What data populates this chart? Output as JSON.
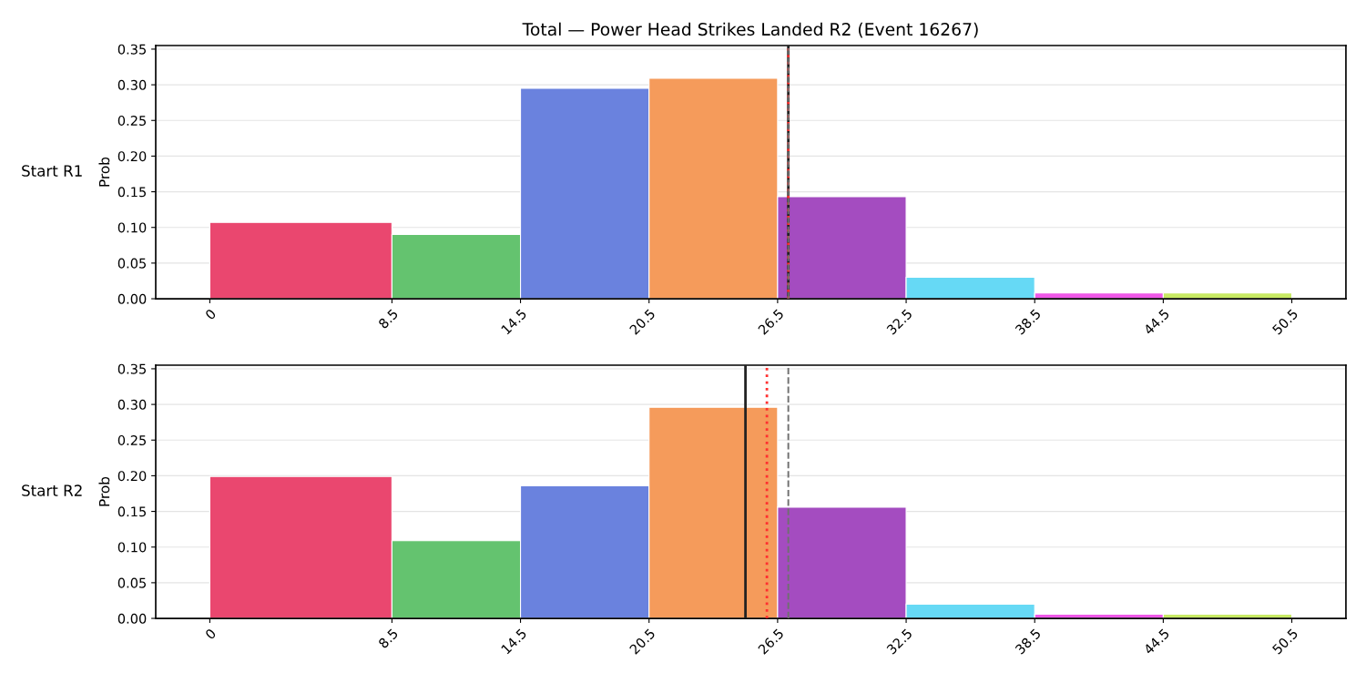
{
  "chart_data": [
    {
      "type": "histogram",
      "title": "Total — Power Head Strikes Landed R2 (Event 16267)",
      "ylabel": "Prob",
      "annotations": [
        "Start R1"
      ],
      "bins": [
        0,
        8.5,
        14.5,
        20.5,
        26.5,
        32.5,
        38.5,
        44.5,
        50.5
      ],
      "values": [
        0.107,
        0.09,
        0.295,
        0.309,
        0.143,
        0.03,
        0.008,
        0.008
      ],
      "colors": [
        "#ea476f",
        "#64c36f",
        "#6a82de",
        "#f59b5b",
        "#a44cc0",
        "#66d9f5",
        "#ef58e8",
        "#c8ea64"
      ],
      "xlim": [
        -2.525,
        53.025
      ],
      "xticks": [
        0,
        8.5,
        14.5,
        20.5,
        26.5,
        32.5,
        38.5,
        44.5,
        50.5
      ],
      "ylim": [
        0,
        0.355
      ],
      "yticks": [
        {
          "value": 0,
          "label": "0.00"
        },
        {
          "value": 0.05,
          "label": "0.05"
        },
        {
          "value": 0.1,
          "label": "0.10"
        },
        {
          "value": 0.15,
          "label": "0.15"
        },
        {
          "value": 0.2,
          "label": "0.20"
        },
        {
          "value": 0.25,
          "label": "0.25"
        },
        {
          "value": 0.3,
          "label": "0.30"
        },
        {
          "value": 0.35,
          "label": "0.35"
        }
      ],
      "grid": "y",
      "ref_lines": [
        {
          "axis": "x",
          "value": 27.0,
          "color": "#222222",
          "line_style": "solid"
        },
        {
          "axis": "x",
          "value": 27.0,
          "color": "#ff3030",
          "line_style": "dotted"
        },
        {
          "axis": "x",
          "value": 27.0,
          "color": "#707070",
          "line_style": "dashed"
        }
      ]
    },
    {
      "type": "histogram",
      "ylabel": "Prob",
      "annotations": [
        "Start R2"
      ],
      "bins": [
        0,
        8.5,
        14.5,
        20.5,
        26.5,
        32.5,
        38.5,
        44.5,
        50.5
      ],
      "values": [
        0.199,
        0.109,
        0.186,
        0.296,
        0.156,
        0.02,
        0.006,
        0.006
      ],
      "colors": [
        "#ea476f",
        "#64c36f",
        "#6a82de",
        "#f59b5b",
        "#a44cc0",
        "#66d9f5",
        "#ef58e8",
        "#c8ea64"
      ],
      "xlim": [
        -2.525,
        53.025
      ],
      "xticks": [
        0,
        8.5,
        14.5,
        20.5,
        26.5,
        32.5,
        38.5,
        44.5,
        50.5
      ],
      "ylim": [
        0,
        0.355
      ],
      "yticks": [
        {
          "value": 0,
          "label": "0.00"
        },
        {
          "value": 0.05,
          "label": "0.05"
        },
        {
          "value": 0.1,
          "label": "0.10"
        },
        {
          "value": 0.15,
          "label": "0.15"
        },
        {
          "value": 0.2,
          "label": "0.20"
        },
        {
          "value": 0.25,
          "label": "0.25"
        },
        {
          "value": 0.3,
          "label": "0.30"
        },
        {
          "value": 0.35,
          "label": "0.35"
        }
      ],
      "grid": "y",
      "ref_lines": [
        {
          "axis": "x",
          "value": 25.0,
          "color": "#222222",
          "line_style": "solid"
        },
        {
          "axis": "x",
          "value": 26.0,
          "color": "#ff3030",
          "line_style": "dotted"
        },
        {
          "axis": "x",
          "value": 27.0,
          "color": "#707070",
          "line_style": "dashed"
        }
      ]
    }
  ]
}
